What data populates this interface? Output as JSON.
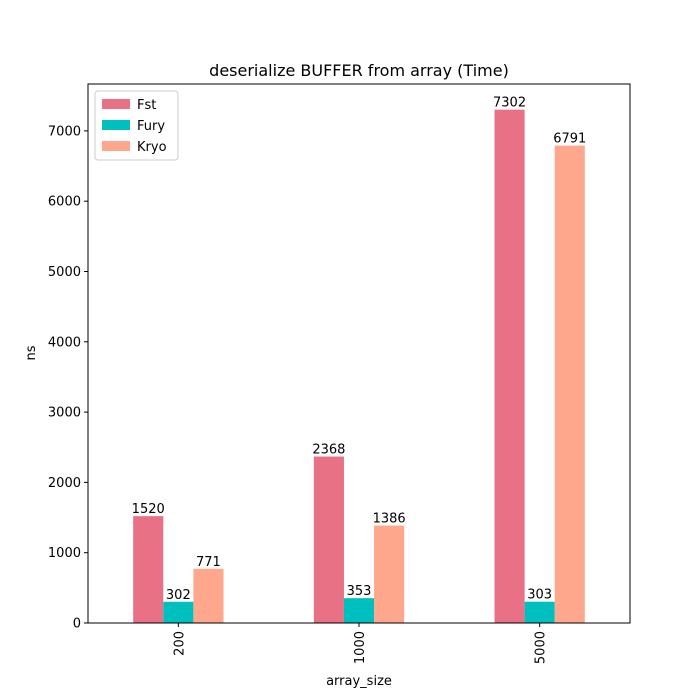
{
  "chart_data": {
    "type": "bar",
    "title": "deserialize BUFFER from array (Time)",
    "xlabel": "array_size",
    "ylabel": "ns",
    "categories": [
      "200",
      "1000",
      "5000"
    ],
    "series": [
      {
        "name": "Fst",
        "values": [
          1520,
          2368,
          7302
        ],
        "color": "#e87185"
      },
      {
        "name": "Fury",
        "values": [
          302,
          353,
          303
        ],
        "color": "#00bfbf"
      },
      {
        "name": "Kryo",
        "values": [
          771,
          1386,
          6791
        ],
        "color": "#ffa78c"
      }
    ],
    "ylim": [
      0,
      7667
    ],
    "yticks": [
      0,
      1000,
      2000,
      3000,
      4000,
      5000,
      6000,
      7000
    ],
    "x_tick_rotation": 90,
    "legend": "top-left",
    "grid": false
  }
}
